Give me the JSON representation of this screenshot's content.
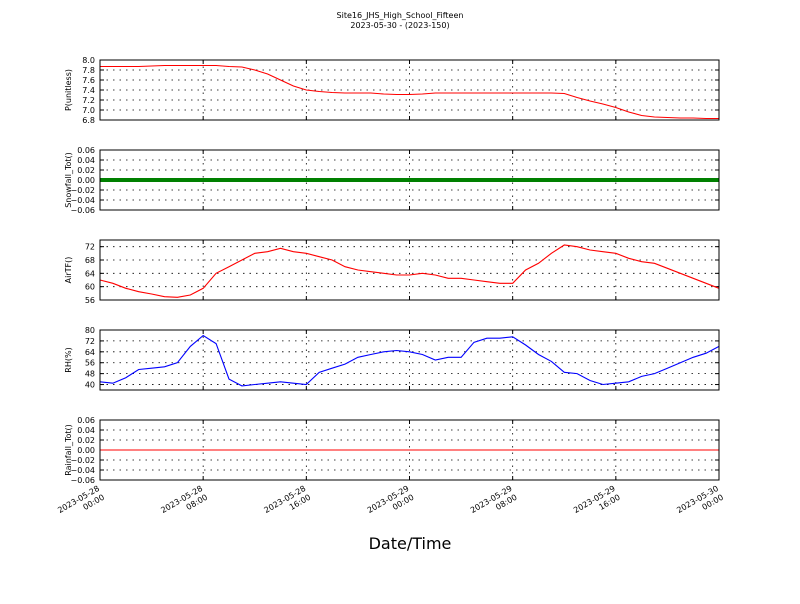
{
  "figure": {
    "title_line1": "Site16_JHS_High_School_Fifteen",
    "title_line2": "2023-05-30 - (2023-150)",
    "xlabel": "Date/Time"
  },
  "chart_data": [
    {
      "type": "line",
      "ylabel": "P(unitless)",
      "ylim": [
        6.8,
        8.0
      ],
      "yticks": [
        "6.8",
        "7.0",
        "7.2",
        "7.4",
        "7.6",
        "7.8",
        "8.0"
      ],
      "color": "#ff0000",
      "x_hours": [
        0,
        1,
        2,
        3,
        4,
        5,
        6,
        7,
        8,
        9,
        10,
        11,
        12,
        13,
        14,
        15,
        16,
        17,
        18,
        19,
        20,
        21,
        22,
        23,
        24,
        25,
        26,
        27,
        28,
        29,
        30,
        31,
        32,
        33,
        34,
        35,
        36,
        37,
        38,
        39,
        40,
        41,
        42,
        43,
        44,
        45,
        46,
        47,
        48
      ],
      "values": [
        7.87,
        7.87,
        7.87,
        7.87,
        7.88,
        7.89,
        7.89,
        7.89,
        7.89,
        7.89,
        7.87,
        7.86,
        7.8,
        7.72,
        7.6,
        7.48,
        7.4,
        7.37,
        7.35,
        7.34,
        7.34,
        7.34,
        7.32,
        7.31,
        7.31,
        7.32,
        7.34,
        7.34,
        7.34,
        7.34,
        7.34,
        7.34,
        7.34,
        7.34,
        7.34,
        7.34,
        7.33,
        7.25,
        7.18,
        7.12,
        7.05,
        6.96,
        6.89,
        6.86,
        6.85,
        6.84,
        6.84,
        6.83,
        6.83
      ]
    },
    {
      "type": "scatter",
      "ylabel": "Snowfall_Tot()",
      "ylim": [
        -0.06,
        0.06
      ],
      "yticks": [
        "−0.06",
        "−0.04",
        "−0.02",
        "0.00",
        "0.02",
        "0.04",
        "0.06"
      ],
      "color": "#008000",
      "constant_value": 0.0
    },
    {
      "type": "line",
      "ylabel": "AirTF()",
      "ylim": [
        56,
        74
      ],
      "yticks": [
        "56",
        "60",
        "64",
        "68",
        "72"
      ],
      "color": "#ff0000",
      "x_hours": [
        0,
        1,
        2,
        3,
        4,
        5,
        6,
        7,
        8,
        9,
        10,
        11,
        12,
        13,
        14,
        15,
        16,
        17,
        18,
        19,
        20,
        21,
        22,
        23,
        24,
        25,
        26,
        27,
        28,
        29,
        30,
        31,
        32,
        33,
        34,
        35,
        36,
        37,
        38,
        39,
        40,
        41,
        42,
        43,
        44,
        45,
        46,
        47,
        48
      ],
      "values": [
        62.0,
        61.0,
        59.5,
        58.5,
        57.8,
        57.0,
        56.8,
        57.5,
        59.5,
        64.0,
        66.0,
        68.0,
        70.0,
        70.5,
        71.5,
        70.5,
        70.0,
        69.0,
        68.0,
        66.0,
        65.0,
        64.5,
        64.0,
        63.5,
        63.5,
        64.0,
        63.5,
        62.5,
        62.5,
        62.0,
        61.5,
        61.0,
        61.0,
        65.0,
        67.0,
        70.0,
        72.5,
        72.0,
        71.0,
        70.5,
        70.0,
        68.5,
        67.5,
        67.0,
        65.5,
        64.0,
        62.5,
        61.0,
        59.5
      ]
    },
    {
      "type": "line",
      "ylabel": "RH(%)",
      "ylim": [
        36,
        80
      ],
      "yticks": [
        "40",
        "48",
        "56",
        "64",
        "72",
        "80"
      ],
      "color": "#0000ff",
      "x_hours": [
        0,
        1,
        2,
        3,
        4,
        5,
        6,
        7,
        8,
        9,
        10,
        11,
        12,
        13,
        14,
        15,
        16,
        17,
        18,
        19,
        20,
        21,
        22,
        23,
        24,
        25,
        26,
        27,
        28,
        29,
        30,
        31,
        32,
        33,
        34,
        35,
        36,
        37,
        38,
        39,
        40,
        41,
        42,
        43,
        44,
        45,
        46,
        47,
        48
      ],
      "values": [
        42,
        41,
        45,
        51,
        52,
        53,
        56,
        68,
        76,
        70,
        44,
        39,
        40,
        41,
        42,
        41,
        40,
        49,
        52,
        55,
        60,
        62,
        64,
        65,
        64,
        62,
        58,
        60,
        60,
        71,
        74,
        74,
        75,
        69,
        62,
        57,
        49,
        48,
        43,
        40,
        41,
        42,
        46,
        48,
        52,
        56,
        60,
        63,
        68
      ]
    },
    {
      "type": "line",
      "ylabel": "Rainfall_Tot()",
      "ylim": [
        -0.06,
        0.06
      ],
      "yticks": [
        "−0.06",
        "−0.04",
        "−0.02",
        "0.00",
        "0.02",
        "0.04",
        "0.06"
      ],
      "color": "#ff0000",
      "constant_value": 0.0
    }
  ],
  "x_axis": {
    "tick_labels": [
      [
        "2023-05-28",
        "00:00"
      ],
      [
        "2023-05-28",
        "08:00"
      ],
      [
        "2023-05-28",
        "16:00"
      ],
      [
        "2023-05-29",
        "00:00"
      ],
      [
        "2023-05-29",
        "08:00"
      ],
      [
        "2023-05-29",
        "16:00"
      ],
      [
        "2023-05-30",
        "00:00"
      ]
    ],
    "tick_hours": [
      0,
      8,
      16,
      24,
      32,
      40,
      48
    ],
    "range_hours": [
      0,
      48
    ]
  }
}
